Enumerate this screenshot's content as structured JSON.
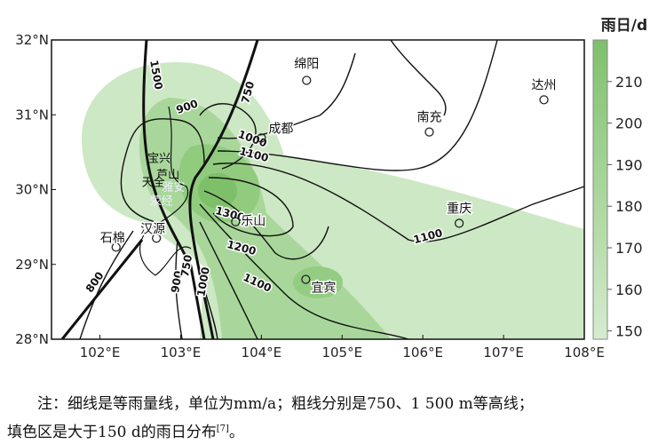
{
  "map": {
    "lon_ticks": [
      "102°E",
      "103°E",
      "104°E",
      "105°E",
      "106°E",
      "107°E",
      "108°E"
    ],
    "lat_ticks": [
      "32°N",
      "31°N",
      "30°N",
      "29°N",
      "28°N"
    ],
    "lon_range": [
      101.4,
      108.0
    ],
    "lat_range": [
      28.0,
      32.0
    ],
    "cities": [
      {
        "name": "绵阳",
        "lon": 104.56,
        "lat": 31.46
      },
      {
        "name": "达州",
        "lon": 107.5,
        "lat": 31.2
      },
      {
        "name": "南充",
        "lon": 106.08,
        "lat": 30.77
      },
      {
        "name": "成都",
        "lon": 104.0,
        "lat": 30.69
      },
      {
        "name": "重庆",
        "lon": 106.45,
        "lat": 29.55
      },
      {
        "name": "乐山",
        "lon": 103.68,
        "lat": 29.57
      },
      {
        "name": "宜宾",
        "lon": 104.55,
        "lat": 28.8
      },
      {
        "name": "石棉",
        "lon": 102.2,
        "lat": 29.23
      },
      {
        "name": "汉源",
        "lon": 102.7,
        "lat": 29.35
      },
      {
        "name": "宝兴",
        "lon": 102.82,
        "lat": 30.37
      },
      {
        "name": "天全",
        "lon": 102.75,
        "lat": 30.05
      },
      {
        "name": "荥经",
        "lon": 102.85,
        "lat": 29.8
      },
      {
        "name": "芦山",
        "lon": 102.93,
        "lat": 30.15
      },
      {
        "name": "雅安",
        "lon": 103.0,
        "lat": 29.98
      }
    ],
    "contour_labels": [
      "1500",
      "750",
      "900",
      "1000",
      "1100",
      "1300",
      "1200",
      "1100",
      "1100",
      "800",
      "900",
      "1000",
      "750"
    ],
    "colorbar": {
      "title": "雨日/d",
      "ticks": [
        "210",
        "200",
        "190",
        "180",
        "170",
        "160",
        "150"
      ],
      "range": [
        148,
        220
      ],
      "colors": [
        "#d6ecd0",
        "#b7dcab",
        "#9ccf8d",
        "#7fc06c"
      ]
    }
  },
  "note": {
    "line1": "注：细线是等雨量线，单位为mm/a；粗线分别是750、1 500 m等高线；",
    "line2": "填色区是大于150 d的雨日分布",
    "ref": "[7]",
    "end": "。"
  }
}
